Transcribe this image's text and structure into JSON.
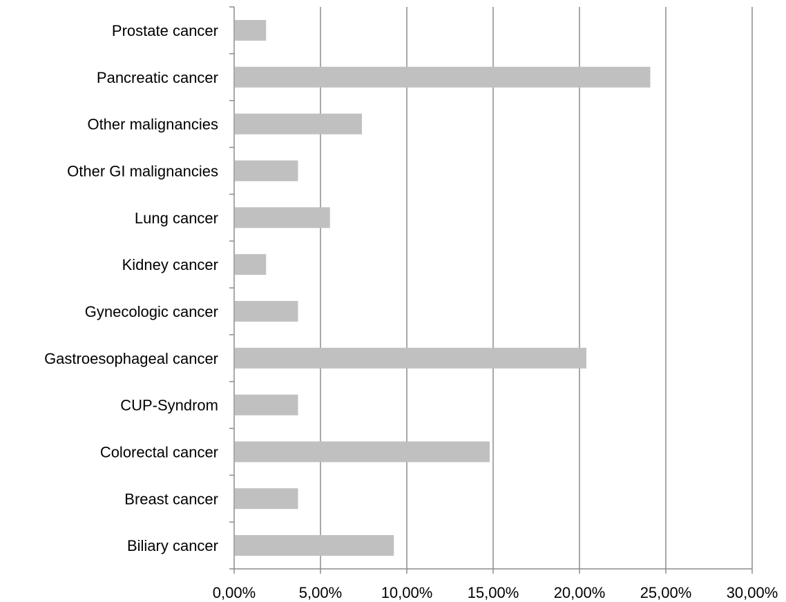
{
  "chart_data": {
    "type": "bar",
    "orientation": "horizontal",
    "title": "",
    "xlabel": "",
    "ylabel": "",
    "categories": [
      "Prostate cancer",
      "Pancreatic cancer",
      "Other malignancies",
      "Other GI malignancies",
      "Lung cancer",
      "Kidney cancer",
      "Gynecologic cancer",
      "Gastroesophageal cancer",
      "CUP-Syndrom",
      "Colorectal cancer",
      "Breast cancer",
      "Biliary cancer"
    ],
    "values": [
      1.85,
      24.1,
      7.4,
      3.7,
      5.55,
      1.85,
      3.7,
      20.4,
      3.7,
      14.8,
      3.7,
      9.25
    ],
    "xlim": [
      0,
      30
    ],
    "xticks": [
      0,
      5,
      10,
      15,
      20,
      25,
      30
    ],
    "xtick_labels": [
      "0,00%",
      "5,00%",
      "10,00%",
      "15,00%",
      "20,00%",
      "25,00%",
      "30,00%"
    ],
    "grid": "vertical",
    "legend": "none",
    "colors": {
      "bar": "#c0c0c0",
      "grid": "#8c8c8c",
      "axis": "#8c8c8c",
      "text": "#000000"
    }
  }
}
